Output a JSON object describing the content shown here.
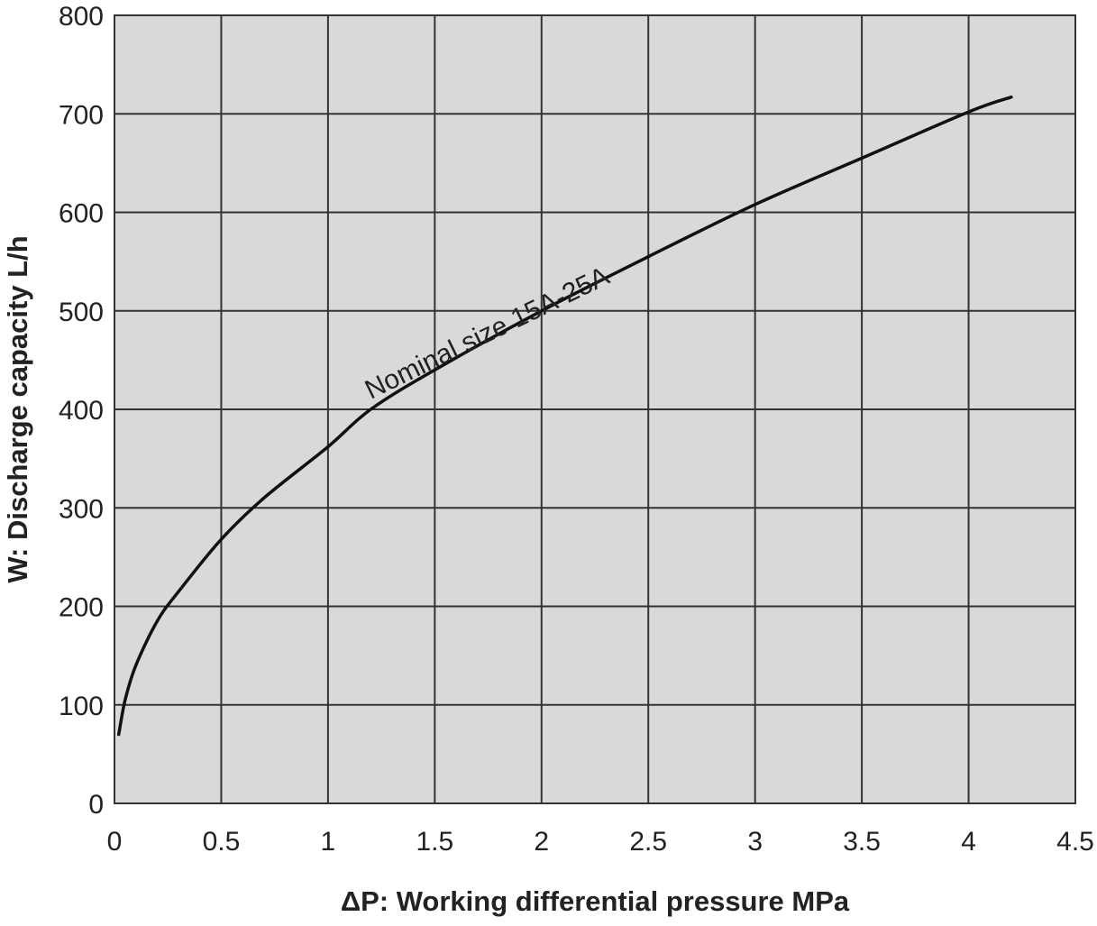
{
  "chart_data": {
    "type": "line",
    "title": "",
    "xlabel": "ΔP: Working differential pressure MPa",
    "ylabel": "W: Discharge capacity  L/h",
    "xlim": [
      0,
      4.5
    ],
    "ylim": [
      0,
      800
    ],
    "x_ticks": [
      "0",
      "0.5",
      "1",
      "1.5",
      "2",
      "2.5",
      "3",
      "3.5",
      "4",
      "4.5"
    ],
    "y_ticks": [
      "0",
      "100",
      "200",
      "300",
      "400",
      "500",
      "600",
      "700",
      "800"
    ],
    "grid": true,
    "legend": "none",
    "colors": {
      "plot_background": "#d9d9d9",
      "grid": "#333333",
      "line": "#111111"
    },
    "series": [
      {
        "x": [
          0.02,
          0.05,
          0.1,
          0.2,
          0.3,
          0.5,
          0.7,
          1.0,
          1.2,
          1.5,
          2.0,
          2.5,
          3.0,
          3.5,
          4.0,
          4.2
        ],
        "y": [
          70,
          105,
          140,
          185,
          215,
          268,
          310,
          362,
          400,
          440,
          500,
          555,
          608,
          655,
          702,
          717
        ]
      }
    ],
    "annotations": [
      {
        "text": "Nominal size 15A-25A",
        "x": 1.2,
        "y": 410,
        "angle": -26
      }
    ]
  }
}
